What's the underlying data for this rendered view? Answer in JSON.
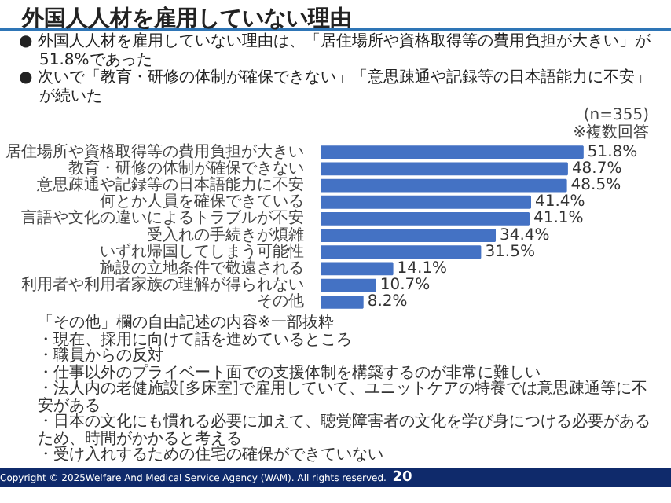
{
  "chart_data": {
    "type": "bar",
    "orientation": "horizontal",
    "title": "外国人人材を雇用していない理由",
    "annotations": [
      "● 外国人人材を雇用していない理由は、「居住場所や資格取得等の費用負担が大きい」が51.8%であった",
      "● 次いで「教育・研修の体制が確保できない」「意思疎通や記録等の日本語能力に不安」が続いた",
      "(n=355)",
      "※複数回答",
      "「その他」欄の自由記述の内容※一部抜粋",
      "・現在、採用に向けて話を進めているところ",
      "・職員からの反対",
      "・仕事以外のプライベート面での支援体制を構築するのが非常に難しい",
      "・法人内の老健施設[多床室]で雇用していて、ユニットケアの特養では意思疎通等に不安がある",
      "・日本の文化にも慣れる必要に加えて、聴覚障害者の文化を学び身につける必要があるため、時間がかかると考える",
      "・受け入れするための住宅の確保ができていない",
      "Copyright © 2025Welfare And Medical Service Agency (WAM). All rights reserved.",
      "20"
    ],
    "categories": [
      "居住場所や資格取得等の費用負担が大きい",
      "教育・研修の体制が確保できない",
      "意思疎通や記録等の日本語能力に不安",
      "何とか人員を確保できている",
      "言語や文化の違いによるトラブルが不安",
      "受入れの手続きが煩雑",
      "いずれ帰国してしまう可能性",
      "施設の立地条件で敬遠される",
      "利用者や利用者家族の理解が得られない",
      "その他"
    ],
    "values": [
      51.8,
      48.7,
      48.5,
      41.4,
      41.1,
      34.4,
      31.5,
      14.1,
      10.7,
      8.2
    ],
    "value_labels": [
      "51.8%",
      "48.7%",
      "48.5%",
      "41.4%",
      "41.1%",
      "34.4%",
      "31.5%",
      "14.1%",
      "10.7%",
      "8.2%"
    ],
    "color": "#4472c4"
  }
}
